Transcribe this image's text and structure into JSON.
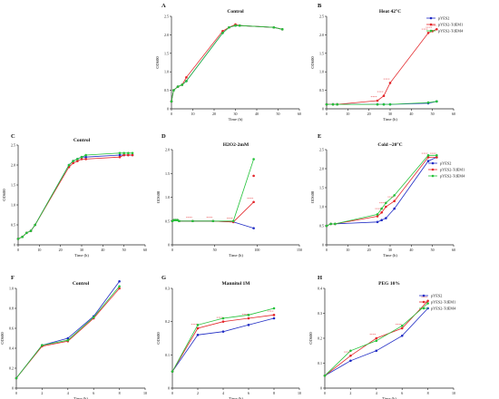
{
  "colors": {
    "blue": "#1f2bc4",
    "red": "#e3262a",
    "green": "#24c23a",
    "axis": "#222222"
  },
  "chart_data": [
    {
      "panel": "A",
      "type": "line",
      "title": "Control",
      "xlabel": "Time (h)",
      "ylabel": "OD600",
      "xlim": [
        0,
        60
      ],
      "ylim": [
        0,
        2.5
      ],
      "xticks": [
        0,
        10,
        20,
        30,
        40,
        50,
        60
      ],
      "yticks": [
        0,
        0.5,
        1.0,
        1.5,
        2.0,
        2.5
      ],
      "ytick_labels": [
        "0",
        "0.5",
        "1.0",
        "1.5",
        "2.0",
        "2.5"
      ],
      "series": [
        {
          "color": "blue",
          "x": [
            0,
            1,
            3,
            5,
            7,
            24,
            27,
            30,
            32,
            48,
            52
          ],
          "y": [
            0.2,
            0.5,
            0.6,
            0.65,
            0.75,
            2.05,
            2.2,
            2.25,
            2.25,
            2.2,
            2.15
          ]
        },
        {
          "color": "red",
          "x": [
            0,
            1,
            3,
            5,
            7,
            24,
            27,
            30,
            32,
            48,
            52
          ],
          "y": [
            0.2,
            0.5,
            0.6,
            0.65,
            0.85,
            2.1,
            2.2,
            2.28,
            2.25,
            2.2,
            2.15
          ]
        },
        {
          "color": "green",
          "x": [
            0,
            1,
            3,
            5,
            7,
            24,
            27,
            30,
            32,
            48,
            52
          ],
          "y": [
            0.2,
            0.5,
            0.6,
            0.65,
            0.75,
            2.05,
            2.2,
            2.25,
            2.25,
            2.2,
            2.15
          ]
        }
      ]
    },
    {
      "panel": "B",
      "type": "line",
      "title": "Heat 42°C",
      "xlabel": "Time (h)",
      "ylabel": "OD600",
      "xlim": [
        0,
        60
      ],
      "ylim": [
        0,
        2.5
      ],
      "xticks": [
        0,
        10,
        20,
        30,
        40,
        50,
        60
      ],
      "yticks": [
        0,
        0.5,
        1.0,
        1.5,
        2.0,
        2.5
      ],
      "ytick_labels": [
        "0",
        "0.5",
        "1.0",
        "1.5",
        "2.0",
        "2.5"
      ],
      "legend": [
        "pYES2",
        "pYES2-TdEM1",
        "pYES2-TdEM4"
      ],
      "legend_colors": [
        "blue",
        "red",
        "green"
      ],
      "series": [
        {
          "name": "pYES2",
          "color": "blue",
          "x": [
            0,
            3,
            5,
            24,
            27,
            30,
            48,
            52
          ],
          "y": [
            0.12,
            0.12,
            0.12,
            0.12,
            0.12,
            0.12,
            0.15,
            0.2
          ]
        },
        {
          "name": "pYES2-TdEM1",
          "color": "red",
          "x": [
            0,
            3,
            5,
            24,
            27,
            30,
            48,
            50,
            52
          ],
          "y": [
            0.12,
            0.12,
            0.12,
            0.22,
            0.35,
            0.7,
            2.05,
            2.1,
            2.15
          ]
        },
        {
          "name": "pYES2-TdEM4",
          "color": "green",
          "x": [
            0,
            3,
            5,
            24,
            27,
            30,
            48,
            52
          ],
          "y": [
            0.12,
            0.12,
            0.12,
            0.12,
            0.12,
            0.12,
            0.17,
            0.2
          ]
        }
      ],
      "annotations": [
        "****",
        "****",
        "****",
        "****",
        "****",
        "****"
      ]
    },
    {
      "panel": "C",
      "type": "line",
      "title": "Control",
      "xlabel": "Time (h)",
      "ylabel": "OD600",
      "xlim": [
        0,
        60
      ],
      "ylim": [
        0,
        2.5
      ],
      "xticks": [
        0,
        10,
        20,
        30,
        40,
        50,
        60
      ],
      "yticks": [
        0,
        0.5,
        1.0,
        1.5,
        2.0,
        2.5
      ],
      "ytick_labels": [
        "0",
        "0.5",
        "1.0",
        "1.5",
        "2.0",
        "2.5"
      ],
      "series": [
        {
          "color": "blue",
          "x": [
            0,
            2,
            4,
            6,
            8,
            24,
            26,
            28,
            30,
            32,
            48,
            50,
            52,
            54
          ],
          "y": [
            0.15,
            0.2,
            0.3,
            0.35,
            0.5,
            2.0,
            2.1,
            2.15,
            2.2,
            2.2,
            2.25,
            2.25,
            2.25,
            2.25
          ]
        },
        {
          "color": "red",
          "x": [
            0,
            2,
            4,
            6,
            8,
            24,
            26,
            28,
            30,
            32,
            48,
            50,
            52,
            54
          ],
          "y": [
            0.15,
            0.2,
            0.3,
            0.35,
            0.5,
            1.95,
            2.05,
            2.1,
            2.15,
            2.15,
            2.2,
            2.25,
            2.25,
            2.25
          ]
        },
        {
          "color": "green",
          "x": [
            0,
            2,
            4,
            6,
            8,
            24,
            26,
            28,
            30,
            32,
            48,
            50,
            52,
            54
          ],
          "y": [
            0.15,
            0.2,
            0.3,
            0.35,
            0.5,
            2.0,
            2.1,
            2.15,
            2.2,
            2.25,
            2.3,
            2.3,
            2.3,
            2.3
          ]
        }
      ]
    },
    {
      "panel": "D",
      "type": "line",
      "title": "H2O2-2mM",
      "xlabel": "Time (h)",
      "ylabel": "OD600",
      "xlim": [
        0,
        150
      ],
      "ylim": [
        0,
        2.0
      ],
      "xticks": [
        0,
        50,
        100,
        150
      ],
      "yticks": [
        0,
        0.5,
        1.0,
        1.5,
        2.0
      ],
      "ytick_labels": [
        "0",
        "0.5",
        "1.0",
        "1.5",
        "2.0"
      ],
      "series": [
        {
          "color": "blue",
          "x": [
            0,
            2,
            4,
            6,
            8,
            24,
            48,
            72,
            96
          ],
          "y": [
            0.5,
            0.52,
            0.52,
            0.52,
            0.5,
            0.5,
            0.5,
            0.48,
            0.35
          ]
        },
        {
          "color": "red",
          "x": [
            0,
            2,
            4,
            6,
            8,
            24,
            48,
            72,
            96
          ],
          "y": [
            0.5,
            0.52,
            0.52,
            0.52,
            0.5,
            0.5,
            0.5,
            0.48,
            0.9
          ]
        },
        {
          "color": "green",
          "x": [
            0,
            2,
            4,
            6,
            8,
            24,
            48,
            72,
            96
          ],
          "y": [
            0.5,
            0.52,
            0.52,
            0.52,
            0.5,
            0.5,
            0.5,
            0.5,
            1.8
          ]
        }
      ],
      "extra_points": [
        {
          "color": "red",
          "x": 96,
          "y": 1.45
        }
      ],
      "annotations": [
        "****",
        "****",
        "****",
        "****"
      ]
    },
    {
      "panel": "E",
      "type": "line",
      "title": "Cold ~20°C",
      "xlabel": "Time (h)",
      "ylabel": "OD600",
      "xlim": [
        0,
        60
      ],
      "ylim": [
        0,
        2.5
      ],
      "xticks": [
        0,
        10,
        20,
        30,
        40,
        50,
        60
      ],
      "yticks": [
        0,
        0.5,
        1.0,
        1.5,
        2.0,
        2.5
      ],
      "ytick_labels": [
        "0",
        "0.5",
        "1.0",
        "1.5",
        "2.0",
        "2.5"
      ],
      "legend": [
        "pYES2",
        "pYES2-TdEM1",
        "pYES2-TdEM4"
      ],
      "legend_colors": [
        "blue",
        "red",
        "green"
      ],
      "series": [
        {
          "name": "pYES2",
          "color": "blue",
          "x": [
            0,
            2,
            4,
            24,
            26,
            28,
            32,
            48,
            52
          ],
          "y": [
            0.5,
            0.55,
            0.55,
            0.6,
            0.65,
            0.7,
            0.95,
            2.2,
            2.3
          ]
        },
        {
          "name": "pYES2-TdEM1",
          "color": "red",
          "x": [
            0,
            2,
            4,
            24,
            26,
            28,
            32,
            48,
            52
          ],
          "y": [
            0.5,
            0.55,
            0.55,
            0.75,
            0.85,
            1.0,
            1.15,
            2.3,
            2.3
          ]
        },
        {
          "name": "pYES2-TdEM4",
          "color": "green",
          "x": [
            0,
            2,
            4,
            24,
            26,
            28,
            32,
            48,
            52
          ],
          "y": [
            0.5,
            0.55,
            0.55,
            0.8,
            0.95,
            1.1,
            1.3,
            2.35,
            2.35
          ]
        }
      ],
      "annotations": [
        "****",
        "****",
        "****",
        "****",
        "****"
      ]
    },
    {
      "panel": "F",
      "type": "line",
      "title": "Control",
      "xlabel": "Time (h)",
      "ylabel": "OD600",
      "xlim": [
        0,
        10
      ],
      "ylim": [
        0,
        1.0
      ],
      "xticks": [
        0,
        2,
        4,
        6,
        8,
        10
      ],
      "yticks": [
        0,
        0.2,
        0.4,
        0.6,
        0.8,
        1.0
      ],
      "ytick_labels": [
        "0",
        "0.2",
        "0.4",
        "0.6",
        "0.8",
        "1.0"
      ],
      "series": [
        {
          "color": "blue",
          "x": [
            0,
            2,
            4,
            6,
            8
          ],
          "y": [
            0.1,
            0.43,
            0.5,
            0.72,
            1.07
          ]
        },
        {
          "color": "red",
          "x": [
            0,
            2,
            4,
            6,
            8
          ],
          "y": [
            0.1,
            0.42,
            0.47,
            0.7,
            1.0
          ]
        },
        {
          "color": "green",
          "x": [
            0,
            2,
            4,
            6,
            8
          ],
          "y": [
            0.1,
            0.43,
            0.48,
            0.71,
            1.02
          ]
        }
      ]
    },
    {
      "panel": "G",
      "type": "line",
      "title": "Mannitol 1M",
      "xlabel": "Time (h)",
      "ylabel": "OD600",
      "xlim": [
        0,
        10
      ],
      "ylim": [
        0,
        0.3
      ],
      "xticks": [
        0,
        2,
        4,
        6,
        8,
        10
      ],
      "yticks": [
        0,
        0.1,
        0.2,
        0.3
      ],
      "ytick_labels": [
        "0",
        "0.1",
        "0.2",
        "0.3"
      ],
      "series": [
        {
          "color": "blue",
          "x": [
            0,
            2,
            4,
            6,
            8
          ],
          "y": [
            0.05,
            0.16,
            0.17,
            0.19,
            0.21
          ]
        },
        {
          "color": "red",
          "x": [
            0,
            2,
            4,
            6,
            8
          ],
          "y": [
            0.05,
            0.18,
            0.2,
            0.21,
            0.22
          ]
        },
        {
          "color": "green",
          "x": [
            0,
            2,
            4,
            6,
            8
          ],
          "y": [
            0.05,
            0.19,
            0.21,
            0.22,
            0.24
          ]
        }
      ],
      "annotations": [
        "****",
        "****",
        "****",
        "****"
      ]
    },
    {
      "panel": "H",
      "type": "line",
      "title": "PEG 10%",
      "xlabel": "Time (h)",
      "ylabel": "OD600",
      "xlim": [
        0,
        10
      ],
      "ylim": [
        0,
        0.4
      ],
      "xticks": [
        0,
        2,
        4,
        6,
        8,
        10
      ],
      "yticks": [
        0,
        0.1,
        0.2,
        0.3,
        0.4
      ],
      "ytick_labels": [
        "0",
        "0.1",
        "0.2",
        "0.3",
        "0.4"
      ],
      "legend": [
        "pYES2",
        "pYES2-TdEM1",
        "pYES2-TdEM4"
      ],
      "legend_colors": [
        "blue",
        "red",
        "green"
      ],
      "series": [
        {
          "name": "pYES2",
          "color": "blue",
          "x": [
            0,
            2,
            4,
            6,
            8
          ],
          "y": [
            0.05,
            0.11,
            0.15,
            0.21,
            0.32
          ]
        },
        {
          "name": "pYES2-TdEM1",
          "color": "red",
          "x": [
            0,
            2,
            4,
            6,
            8
          ],
          "y": [
            0.05,
            0.13,
            0.2,
            0.24,
            0.35
          ]
        },
        {
          "name": "pYES2-TdEM4",
          "color": "green",
          "x": [
            0,
            2,
            4,
            6,
            8
          ],
          "y": [
            0.05,
            0.15,
            0.19,
            0.25,
            0.34
          ]
        }
      ],
      "annotations": [
        "****",
        "****",
        "****",
        "****"
      ]
    }
  ]
}
